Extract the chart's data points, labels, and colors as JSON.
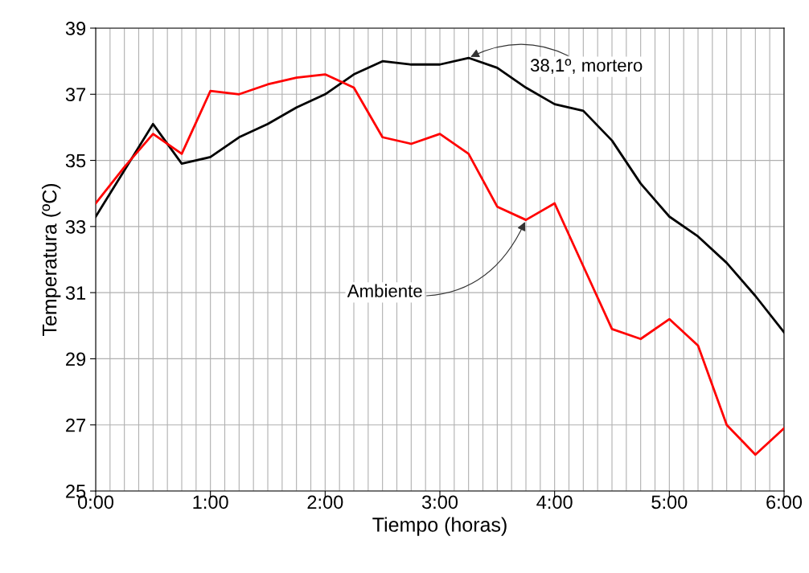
{
  "chart_data": {
    "type": "line",
    "xlabel": "Tiempo (horas)",
    "ylabel": "Temperatura (ºC)",
    "x": [
      0,
      0.25,
      0.5,
      0.75,
      1,
      1.25,
      1.5,
      1.75,
      2,
      2.25,
      2.5,
      2.75,
      3,
      3.25,
      3.5,
      3.75,
      4,
      4.25,
      4.5,
      4.75,
      5,
      5.25,
      5.5,
      5.75,
      6
    ],
    "series": [
      {
        "color": "#000000",
        "values": [
          33.3,
          34.7,
          36.1,
          34.9,
          35.1,
          35.7,
          36.1,
          36.6,
          37.0,
          37.6,
          38.0,
          37.9,
          37.9,
          38.1,
          37.8,
          37.2,
          36.7,
          36.5,
          35.6,
          34.3,
          33.3,
          32.7,
          31.9,
          30.9,
          29.8
        ]
      },
      {
        "color": "#ff0000",
        "values": [
          33.7,
          34.8,
          35.8,
          35.2,
          37.1,
          37.0,
          37.3,
          37.5,
          37.6,
          37.2,
          35.7,
          35.5,
          35.8,
          35.2,
          33.6,
          33.2,
          33.7,
          31.8,
          29.9,
          29.6,
          30.2,
          29.4,
          27.0,
          26.1,
          26.9
        ]
      }
    ],
    "xlim": [
      0,
      6
    ],
    "xticks": [
      {
        "value": 0,
        "label": "0:00"
      },
      {
        "value": 0.125,
        "label": null
      },
      {
        "value": 0.25,
        "label": null
      },
      {
        "value": 0.375,
        "label": null
      },
      {
        "value": 0.5,
        "label": null
      },
      {
        "value": 0.625,
        "label": null
      },
      {
        "value": 0.75,
        "label": null
      },
      {
        "value": 0.875,
        "label": null
      },
      {
        "value": 1,
        "label": "1:00"
      },
      {
        "value": 1.125,
        "label": null
      },
      {
        "value": 1.25,
        "label": null
      },
      {
        "value": 1.375,
        "label": null
      },
      {
        "value": 1.5,
        "label": null
      },
      {
        "value": 1.625,
        "label": null
      },
      {
        "value": 1.75,
        "label": null
      },
      {
        "value": 1.875,
        "label": null
      },
      {
        "value": 2,
        "label": "2:00"
      },
      {
        "value": 2.125,
        "label": null
      },
      {
        "value": 2.25,
        "label": null
      },
      {
        "value": 2.375,
        "label": null
      },
      {
        "value": 2.5,
        "label": null
      },
      {
        "value": 2.625,
        "label": null
      },
      {
        "value": 2.75,
        "label": null
      },
      {
        "value": 2.875,
        "label": null
      },
      {
        "value": 3,
        "label": "3:00"
      },
      {
        "value": 3.125,
        "label": null
      },
      {
        "value": 3.25,
        "label": null
      },
      {
        "value": 3.375,
        "label": null
      },
      {
        "value": 3.5,
        "label": null
      },
      {
        "value": 3.625,
        "label": null
      },
      {
        "value": 3.75,
        "label": null
      },
      {
        "value": 3.875,
        "label": null
      },
      {
        "value": 4,
        "label": "4:00"
      },
      {
        "value": 4.125,
        "label": null
      },
      {
        "value": 4.25,
        "label": null
      },
      {
        "value": 4.375,
        "label": null
      },
      {
        "value": 4.5,
        "label": null
      },
      {
        "value": 4.625,
        "label": null
      },
      {
        "value": 4.75,
        "label": null
      },
      {
        "value": 4.875,
        "label": null
      },
      {
        "value": 5,
        "label": "5:00"
      },
      {
        "value": 5.125,
        "label": null
      },
      {
        "value": 5.25,
        "label": null
      },
      {
        "value": 5.375,
        "label": null
      },
      {
        "value": 5.5,
        "label": null
      },
      {
        "value": 5.625,
        "label": null
      },
      {
        "value": 5.75,
        "label": null
      },
      {
        "value": 5.875,
        "label": null
      },
      {
        "value": 6,
        "label": "6:00"
      }
    ],
    "ylim": [
      25,
      39
    ],
    "yticks": [
      25,
      27,
      29,
      31,
      33,
      35,
      37,
      39
    ],
    "grid": true,
    "marker": "none",
    "line_style": "solid",
    "annotations": [
      {
        "text": "38,1º, mortero",
        "x": 3.25,
        "y": 38.1
      },
      {
        "text": "Ambiente",
        "x": 3.75,
        "y": 33.2
      }
    ]
  }
}
